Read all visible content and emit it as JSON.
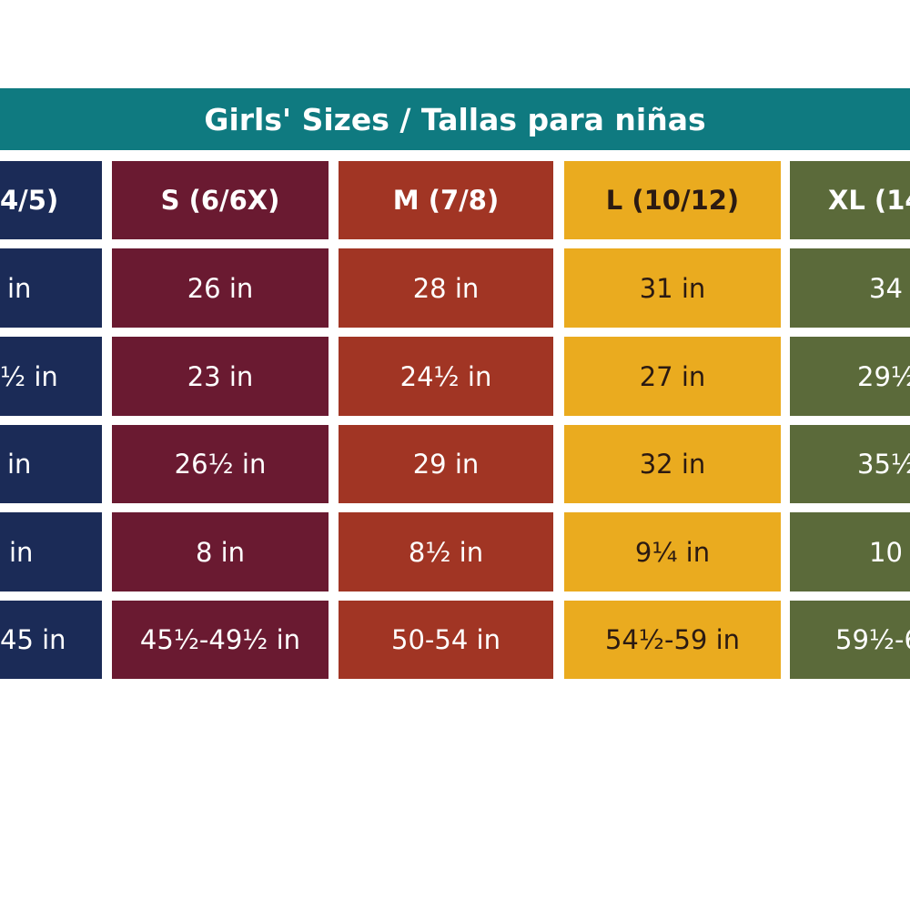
{
  "header": {
    "title": "Girls' Sizes / Tallas para niñas"
  },
  "table": {
    "header": [
      "4/5)",
      "S (6/6X)",
      "M (7/8)",
      "L (10/12)",
      "XL (14"
    ],
    "rows": [
      [
        "in",
        "26 in",
        "28 in",
        "31 in",
        "34"
      ],
      [
        "½ in",
        "23 in",
        "24½ in",
        "27 in",
        "29½"
      ],
      [
        "in",
        "26½ in",
        "29 in",
        "32 in",
        "35½"
      ],
      [
        "in",
        "8 in",
        "8½ in",
        "9¼ in",
        "10"
      ],
      [
        "45 in",
        "45½-49½ in",
        "50-54 in",
        "54½-59 in",
        "59½-6"
      ]
    ]
  }
}
